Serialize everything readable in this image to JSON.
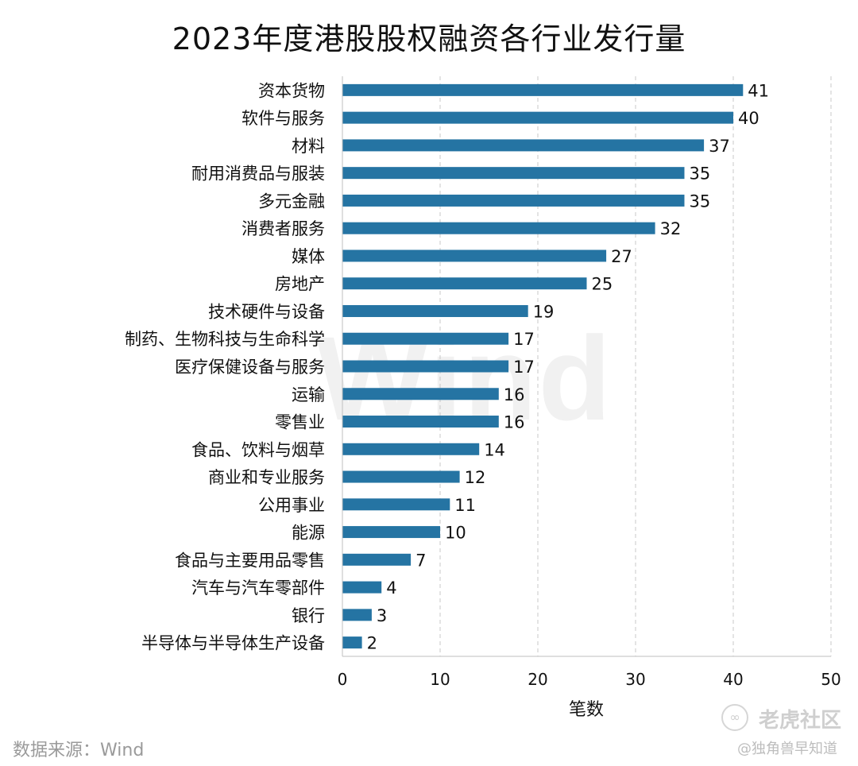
{
  "chart_data": {
    "type": "bar",
    "orientation": "horizontal",
    "title": "2023年度港股股权融资各行业发行量",
    "xlabel": "笔数",
    "ylabel": "",
    "xlim": [
      0,
      50
    ],
    "xticks": [
      0,
      10,
      20,
      30,
      40,
      50
    ],
    "grid": "vertical-dashed",
    "bar_color": "#2574a3",
    "categories": [
      "资本货物",
      "软件与服务",
      "材料",
      "耐用消费品与服装",
      "多元金融",
      "消费者服务",
      "媒体",
      "房地产",
      "技术硬件与设备",
      "制药、生物科技与生命科学",
      "医疗保健设备与服务",
      "运输",
      "零售业",
      "食品、饮料与烟草",
      "商业和专业服务",
      "公用事业",
      "能源",
      "食品与主要用品零售",
      "汽车与汽车零部件",
      "银行",
      "半导体与半导体生产设备"
    ],
    "values": [
      41,
      40,
      37,
      35,
      35,
      32,
      27,
      25,
      19,
      17,
      17,
      16,
      16,
      14,
      12,
      11,
      10,
      7,
      4,
      3,
      2
    ]
  },
  "footer": {
    "source": "数据来源：Wind"
  },
  "watermarks": {
    "background": "Wind",
    "logo_symbol": "∞",
    "logo_text": "老虎社区",
    "user": "@独角兽早知道"
  }
}
